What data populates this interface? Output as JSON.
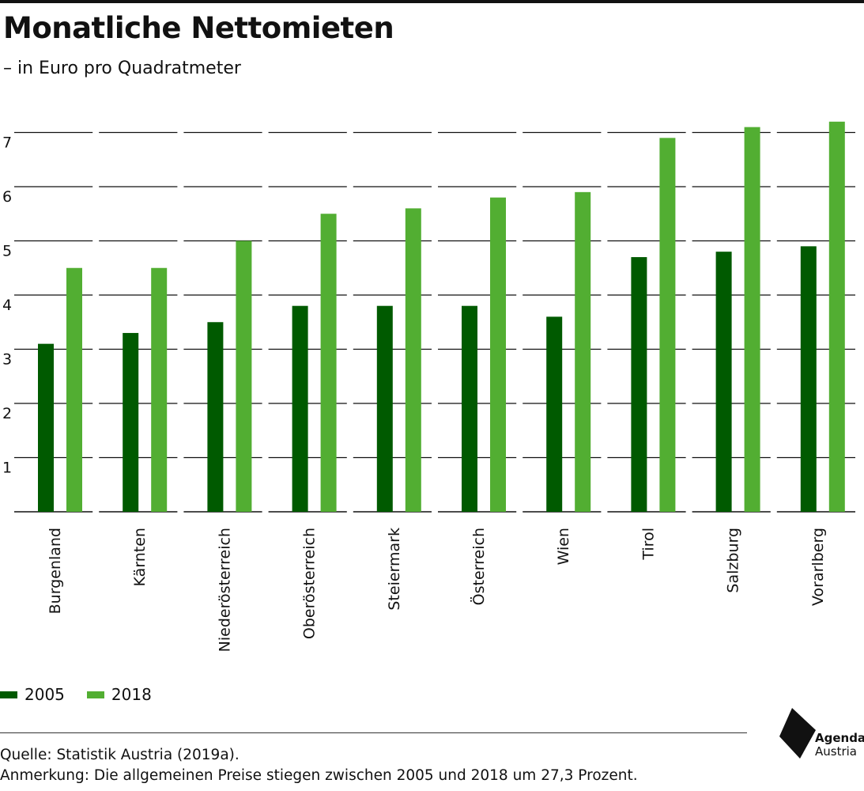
{
  "title": "Monatliche Nettomieten",
  "subtitle": "– in Euro pro Quadratmeter",
  "colors": {
    "2005": "#005a00",
    "2018": "#52ae32"
  },
  "chart_data": {
    "type": "bar",
    "categories": [
      "Burgenland",
      "Kärnten",
      "Niederösterreich",
      "Oberösterreich",
      "Steiermark",
      "Österreich",
      "Wien",
      "Tirol",
      "Salzburg",
      "Vorarlberg"
    ],
    "series": [
      {
        "name": "2005",
        "values": [
          3.1,
          3.3,
          3.5,
          3.8,
          3.8,
          3.8,
          3.6,
          4.7,
          4.8,
          4.9
        ]
      },
      {
        "name": "2018",
        "values": [
          4.5,
          4.5,
          5.0,
          5.5,
          5.6,
          5.8,
          5.9,
          6.9,
          7.1,
          7.2
        ]
      }
    ],
    "yticks": [
      "1",
      "2",
      "3",
      "4",
      "5",
      "6",
      "7"
    ],
    "ylim": [
      0,
      7.2
    ],
    "grid": true,
    "legend": "bottom-left"
  },
  "footer": {
    "source": "Quelle: Statistik Austria (2019a).",
    "note": "Anmerkung: Die allgemeinen Preise stiegen zwischen 2005 und 2018 um 27,3 Prozent."
  },
  "logo": {
    "line1": "Agenda",
    "line2": "Austria"
  }
}
